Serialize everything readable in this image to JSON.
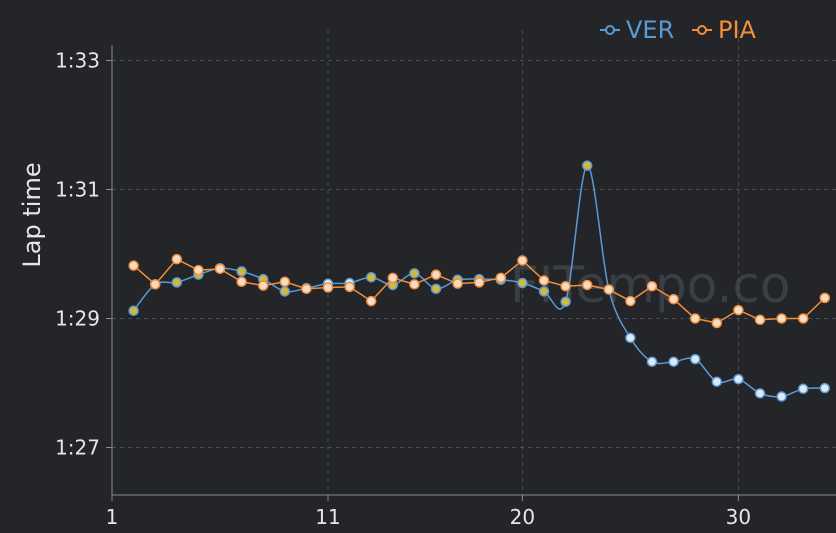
{
  "chart_data": {
    "type": "line",
    "title": "",
    "xlabel": "",
    "ylabel": "Lap time",
    "xlim": [
      1,
      35
    ],
    "ylim": [
      86.3,
      93.2
    ],
    "x_ticks": [
      1,
      11,
      20,
      30
    ],
    "y_ticks": [
      {
        "value": 87,
        "label": "1:27"
      },
      {
        "value": 89,
        "label": "1:29"
      },
      {
        "value": 91,
        "label": "1:31"
      },
      {
        "value": 93,
        "label": "1:33"
      }
    ],
    "grid": true,
    "legend_position": "top-right",
    "series": [
      {
        "name": "VER",
        "color": "#5b9bd5",
        "points": [
          {
            "x": 2,
            "y": 89.12,
            "pit": true
          },
          {
            "x": 3,
            "y": 89.53
          },
          {
            "x": 4,
            "y": 89.56,
            "pit": true
          },
          {
            "x": 5,
            "y": 89.68,
            "pit": true
          },
          {
            "x": 6,
            "y": 89.78,
            "pit": true
          },
          {
            "x": 7,
            "y": 89.73,
            "pit": true
          },
          {
            "x": 8,
            "y": 89.61,
            "pit": true
          },
          {
            "x": 9,
            "y": 89.42,
            "pit": true
          },
          {
            "x": 10,
            "y": 89.47
          },
          {
            "x": 11,
            "y": 89.54
          },
          {
            "x": 12,
            "y": 89.55
          },
          {
            "x": 13,
            "y": 89.64,
            "pit": true
          },
          {
            "x": 14,
            "y": 89.52,
            "pit": true
          },
          {
            "x": 15,
            "y": 89.7,
            "pit": true
          },
          {
            "x": 16,
            "y": 89.46,
            "pit": true
          },
          {
            "x": 17,
            "y": 89.6,
            "pit": true
          },
          {
            "x": 18,
            "y": 89.61,
            "pit": true
          },
          {
            "x": 19,
            "y": 89.6,
            "pit": true
          },
          {
            "x": 20,
            "y": 89.55,
            "pit": true
          },
          {
            "x": 21,
            "y": 89.42,
            "pit": true
          },
          {
            "x": 22,
            "y": 89.26,
            "pit": true
          },
          {
            "x": 23,
            "y": 91.37,
            "pit": true
          },
          {
            "x": 24,
            "y": 89.45
          },
          {
            "x": 25,
            "y": 88.7
          },
          {
            "x": 26,
            "y": 88.33
          },
          {
            "x": 27,
            "y": 88.33
          },
          {
            "x": 28,
            "y": 88.37
          },
          {
            "x": 29,
            "y": 88.02
          },
          {
            "x": 30,
            "y": 88.06
          },
          {
            "x": 31,
            "y": 87.84
          },
          {
            "x": 32,
            "y": 87.79
          },
          {
            "x": 33,
            "y": 87.91
          },
          {
            "x": 34,
            "y": 87.92
          }
        ]
      },
      {
        "name": "PIA",
        "color": "#f28e3c",
        "points": [
          {
            "x": 2,
            "y": 89.82
          },
          {
            "x": 3,
            "y": 89.53
          },
          {
            "x": 4,
            "y": 89.92
          },
          {
            "x": 5,
            "y": 89.75
          },
          {
            "x": 6,
            "y": 89.77
          },
          {
            "x": 7,
            "y": 89.57
          },
          {
            "x": 8,
            "y": 89.51
          },
          {
            "x": 9,
            "y": 89.57
          },
          {
            "x": 10,
            "y": 89.46
          },
          {
            "x": 11,
            "y": 89.48
          },
          {
            "x": 12,
            "y": 89.49
          },
          {
            "x": 13,
            "y": 89.27
          },
          {
            "x": 14,
            "y": 89.63
          },
          {
            "x": 15,
            "y": 89.53
          },
          {
            "x": 16,
            "y": 89.68
          },
          {
            "x": 17,
            "y": 89.54
          },
          {
            "x": 18,
            "y": 89.56
          },
          {
            "x": 19,
            "y": 89.63
          },
          {
            "x": 20,
            "y": 89.9
          },
          {
            "x": 21,
            "y": 89.59
          },
          {
            "x": 22,
            "y": 89.5
          },
          {
            "x": 23,
            "y": 89.52
          },
          {
            "x": 24,
            "y": 89.45
          },
          {
            "x": 25,
            "y": 89.27
          },
          {
            "x": 26,
            "y": 89.5
          },
          {
            "x": 27,
            "y": 89.3
          },
          {
            "x": 28,
            "y": 89.0
          },
          {
            "x": 29,
            "y": 88.93
          },
          {
            "x": 30,
            "y": 89.13
          },
          {
            "x": 31,
            "y": 88.98
          },
          {
            "x": 32,
            "y": 89.0
          },
          {
            "x": 33,
            "y": 89.0
          },
          {
            "x": 34,
            "y": 89.32
          }
        ]
      }
    ],
    "watermark": "FITempo.co"
  },
  "colors": {
    "background": "#232528",
    "pit_marker_fill": "#d4b83a",
    "ver_marker_fill": "#dfe9f3",
    "pia_marker_fill": "#f5ddc5"
  }
}
